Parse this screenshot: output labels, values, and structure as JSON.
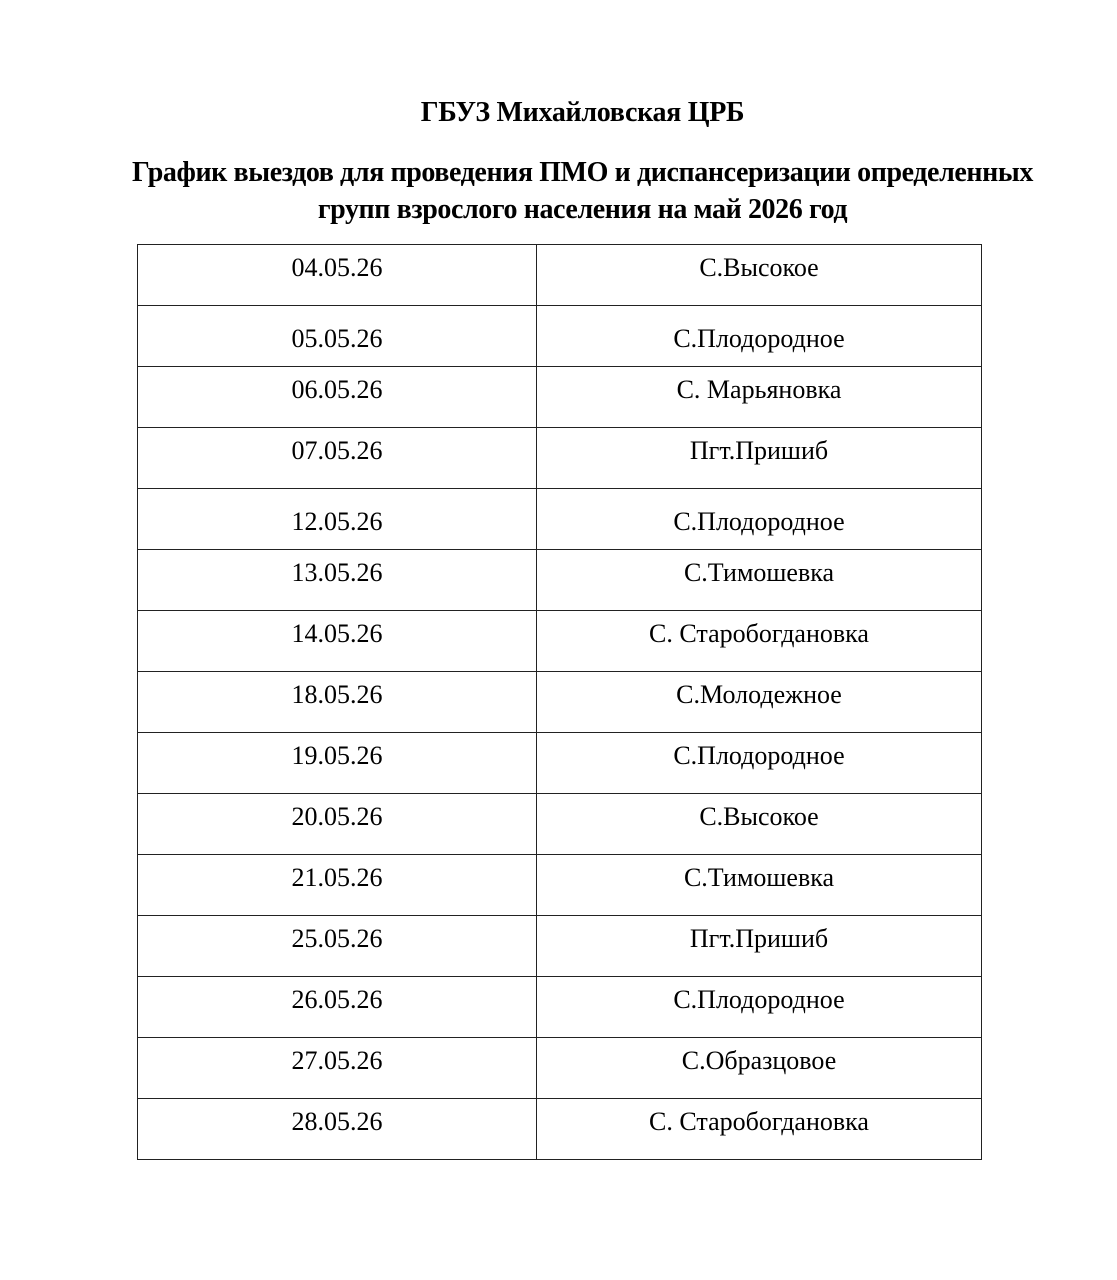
{
  "header": {
    "title": "ГБУЗ Михайловская ЦРБ",
    "subtitle_line1": "График выездов для проведения ПМО и диспансеризации определенных",
    "subtitle_line2": "групп взрослого населения на май 2026 год"
  },
  "schedule": [
    {
      "date": "04.05.26",
      "place": "С.Высокое"
    },
    {
      "date": "05.05.26",
      "place": "С.Плодородное"
    },
    {
      "date": "06.05.26",
      "place": "С. Марьяновка"
    },
    {
      "date": "07.05.26",
      "place": "Пгт.Пришиб"
    },
    {
      "date": "12.05.26",
      "place": "С.Плодородное"
    },
    {
      "date": "13.05.26",
      "place": "С.Тимошевка"
    },
    {
      "date": "14.05.26",
      "place": "С. Старобогдановка"
    },
    {
      "date": "18.05.26",
      "place": "С.Молодежное"
    },
    {
      "date": "19.05.26",
      "place": "С.Плодородное"
    },
    {
      "date": "20.05.26",
      "place": "С.Высокое"
    },
    {
      "date": "21.05.26",
      "place": "С.Тимошевка"
    },
    {
      "date": "25.05.26",
      "place": "Пгт.Пришиб"
    },
    {
      "date": "26.05.26",
      "place": "С.Плодородное"
    },
    {
      "date": "27.05.26",
      "place": "С.Образцовое"
    },
    {
      "date": "28.05.26",
      "place": "С. Старобогдановка"
    }
  ]
}
